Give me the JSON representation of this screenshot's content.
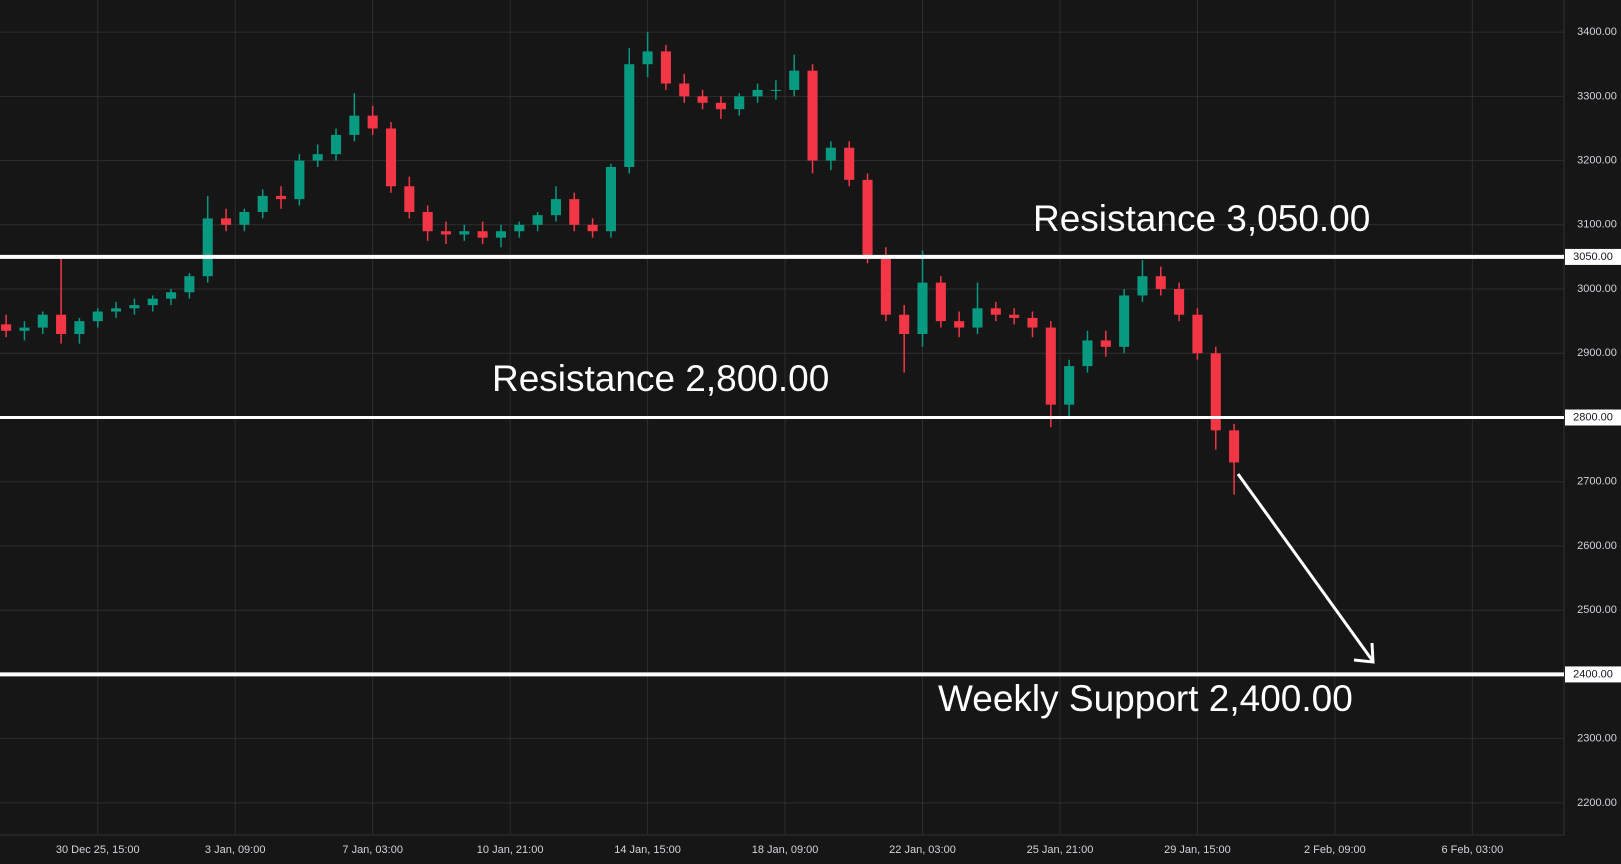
{
  "chart_data": {
    "type": "candlestick",
    "x": [
      -60,
      -48,
      -36,
      -24,
      -12,
      0,
      12,
      24,
      36,
      48,
      60,
      72,
      84,
      96,
      108,
      120,
      132,
      144,
      156,
      168,
      180,
      192,
      204,
      216,
      228,
      240,
      252,
      264,
      276,
      288,
      300,
      312,
      324,
      336,
      348,
      360,
      372,
      384,
      396,
      408,
      420,
      432,
      444,
      456,
      468,
      480,
      492,
      504,
      516,
      528,
      540,
      552,
      564,
      576,
      588,
      600,
      612,
      624,
      636,
      648,
      660,
      672,
      684,
      696,
      708,
      720,
      732,
      744
    ],
    "open": [
      2945,
      2935,
      2940,
      2960,
      2930,
      2950,
      2965,
      2970,
      2975,
      2985,
      2995,
      3020,
      3110,
      3100,
      3120,
      3145,
      3140,
      3200,
      3210,
      3240,
      3270,
      3250,
      3160,
      3120,
      3090,
      3085,
      3090,
      3080,
      3090,
      3100,
      3115,
      3140,
      3100,
      3090,
      3190,
      3350,
      3370,
      3320,
      3300,
      3290,
      3280,
      3300,
      3310,
      3310,
      3340,
      3200,
      3220,
      3170,
      3050,
      2960,
      2930,
      3010,
      2950,
      2940,
      2970,
      2960,
      2955,
      2940,
      2820,
      2880,
      2920,
      2910,
      2990,
      3020,
      3000,
      2960,
      2900,
      2780
    ],
    "high": [
      2960,
      2950,
      2965,
      3050,
      2955,
      2970,
      2980,
      2985,
      2990,
      3000,
      3025,
      3145,
      3125,
      3125,
      3155,
      3160,
      3210,
      3225,
      3250,
      3305,
      3285,
      3260,
      3175,
      3130,
      3105,
      3100,
      3105,
      3100,
      3105,
      3120,
      3160,
      3150,
      3110,
      3195,
      3375,
      3400,
      3380,
      3335,
      3310,
      3300,
      3305,
      3320,
      3325,
      3365,
      3350,
      3230,
      3230,
      3180,
      3065,
      2975,
      3060,
      3020,
      2965,
      3010,
      2980,
      2970,
      2965,
      2950,
      2890,
      2935,
      2935,
      3000,
      3045,
      3035,
      3010,
      2970,
      2910,
      2790
    ],
    "low": [
      2925,
      2920,
      2930,
      2915,
      2915,
      2940,
      2955,
      2960,
      2965,
      2975,
      2985,
      3010,
      3090,
      3090,
      3110,
      3125,
      3130,
      3190,
      3200,
      3230,
      3240,
      3150,
      3110,
      3075,
      3070,
      3075,
      3070,
      3065,
      3080,
      3090,
      3105,
      3090,
      3080,
      3080,
      3180,
      3330,
      3310,
      3290,
      3280,
      3265,
      3270,
      3290,
      3295,
      3300,
      3180,
      3185,
      3160,
      3040,
      2950,
      2870,
      2910,
      2940,
      2925,
      2930,
      2950,
      2945,
      2925,
      2785,
      2800,
      2870,
      2895,
      2900,
      2980,
      2990,
      2950,
      2890,
      2750,
      2680
    ],
    "close": [
      2935,
      2940,
      2960,
      2930,
      2950,
      2965,
      2970,
      2975,
      2985,
      2995,
      3020,
      3110,
      3100,
      3120,
      3145,
      3140,
      3200,
      3210,
      3240,
      3270,
      3250,
      3160,
      3120,
      3090,
      3085,
      3090,
      3080,
      3090,
      3100,
      3115,
      3140,
      3100,
      3090,
      3190,
      3350,
      3370,
      3320,
      3300,
      3290,
      3280,
      3300,
      3310,
      3310,
      3340,
      3200,
      3220,
      3170,
      3050,
      2960,
      2930,
      3010,
      2950,
      2940,
      2970,
      2960,
      2955,
      2940,
      2820,
      2880,
      2920,
      2910,
      2990,
      3020,
      3000,
      2960,
      2900,
      2780,
      2730
    ],
    "up_color": "#089981",
    "down_color": "#f23645",
    "xlim": [
      -64,
      960
    ],
    "ylim": [
      2150,
      3450
    ],
    "xticks": [
      {
        "value": 0,
        "label": "30 Dec 25, 15:00"
      },
      {
        "value": 90,
        "label": "3 Jan, 09:00"
      },
      {
        "value": 180,
        "label": "7 Jan, 03:00"
      },
      {
        "value": 270,
        "label": "10 Jan, 21:00"
      },
      {
        "value": 360,
        "label": "14 Jan, 15:00"
      },
      {
        "value": 450,
        "label": "18 Jan, 09:00"
      },
      {
        "value": 540,
        "label": "22 Jan, 03:00"
      },
      {
        "value": 630,
        "label": "25 Jan, 21:00"
      },
      {
        "value": 720,
        "label": "29 Jan, 15:00"
      },
      {
        "value": 810,
        "label": "2 Feb, 09:00"
      },
      {
        "value": 900,
        "label": "6 Feb, 03:00"
      }
    ],
    "yticks": [
      {
        "value": 2200,
        "label": "2200.00"
      },
      {
        "value": 2300,
        "label": "2300.00"
      },
      {
        "value": 2500,
        "label": "2500.00"
      },
      {
        "value": 2600,
        "label": "2600.00"
      },
      {
        "value": 2700,
        "label": "2700.00"
      },
      {
        "value": 2900,
        "label": "2900.00"
      },
      {
        "value": 3000,
        "label": "3000.00"
      },
      {
        "value": 3100,
        "label": "3100.00"
      },
      {
        "value": 3200,
        "label": "3200.00"
      },
      {
        "value": 3300,
        "label": "3300.00"
      },
      {
        "value": 3400,
        "label": "3400.00"
      }
    ],
    "grid": true,
    "levels": [
      {
        "value": 3050,
        "axis_label": "3050.00",
        "text": "Resistance 3,050.00",
        "width": 4
      },
      {
        "value": 2800,
        "axis_label": "2800.00",
        "text": "Resistance 2,800.00",
        "width": 3
      },
      {
        "value": 2400,
        "axis_label": "2400.00",
        "text": "Weekly Support 2,400.00",
        "width": 4
      }
    ]
  }
}
